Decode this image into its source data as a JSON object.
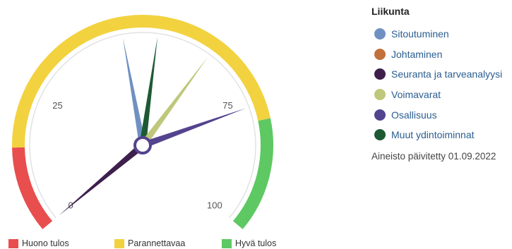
{
  "chart_data": {
    "type": "gauge",
    "range": [
      0,
      100
    ],
    "axis_ticks": [
      {
        "value": 0,
        "label": "0"
      },
      {
        "value": 25,
        "label": "25"
      },
      {
        "value": 75,
        "label": "75"
      },
      {
        "value": 100,
        "label": "100"
      }
    ],
    "bands": [
      {
        "name": "Huono tulos",
        "from": 0,
        "to": 15,
        "color": "#e84e4e"
      },
      {
        "name": "Parannettavaa",
        "from": 15,
        "to": 80,
        "color": "#f2d23f"
      },
      {
        "name": "Hyvä tulos",
        "from": 80,
        "to": 100,
        "color": "#5ec863"
      }
    ],
    "legend_title": "Liikunta",
    "series": [
      {
        "name": "Sitoutuminen",
        "value": 46,
        "color": "#6f91c2"
      },
      {
        "name": "Johtaminen",
        "value": null,
        "color": "#c2703c"
      },
      {
        "name": "Seuranta ja tarveanalyysi",
        "value": 0,
        "color": "#3e1f4c"
      },
      {
        "name": "Voimavarat",
        "value": 64,
        "color": "#bfc77a"
      },
      {
        "name": "Osallisuus",
        "value": 77,
        "color": "#54438e"
      },
      {
        "name": "Muut ydintoiminnat",
        "value": 53,
        "color": "#1d5a33"
      }
    ],
    "updated_text": "Aineisto päivitetty 01.09.2022"
  }
}
